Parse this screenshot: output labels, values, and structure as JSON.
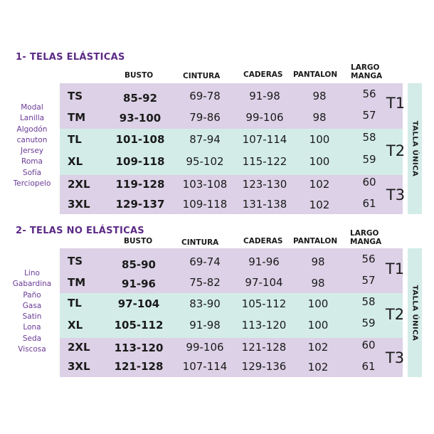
{
  "headers": {
    "busto": "BUSTO",
    "cintura": "CINTURA",
    "caderas": "CADERAS",
    "pantalon": "PANTALON",
    "largo_l1": "LARGO",
    "largo_l2": "MANGA"
  },
  "sidebar_label": "TALLA ÚNICA",
  "sections": [
    {
      "title": "1- TELAS  ELÁSTICAS",
      "fabrics": [
        "Modal",
        "Lanilla",
        "Algodón",
        "canuton",
        "Jersey",
        "Roma",
        "Sofía",
        "Terciopelo"
      ],
      "rows": [
        {
          "size": "TS",
          "busto": "85-92",
          "cintura": "69-78",
          "caderas": "91-98",
          "pantalon": "98",
          "largo": "56"
        },
        {
          "size": "TM",
          "busto": "93-100",
          "cintura": "79-86",
          "caderas": "99-106",
          "pantalon": "98",
          "largo": "57"
        },
        {
          "size": "TL",
          "busto": "101-108",
          "cintura": "87-94",
          "caderas": "107-114",
          "pantalon": "100",
          "largo": "58"
        },
        {
          "size": "XL",
          "busto": "109-118",
          "cintura": "95-102",
          "caderas": "115-122",
          "pantalon": "100",
          "largo": "59"
        },
        {
          "size": "2XL",
          "busto": "119-128",
          "cintura": "103-108",
          "caderas": "123-130",
          "pantalon": "102",
          "largo": "60"
        },
        {
          "size": "3XL",
          "busto": "129-137",
          "cintura": "109-118",
          "caderas": "131-138",
          "pantalon": "102",
          "largo": "61"
        }
      ],
      "groups": [
        "T1",
        "T2",
        "T3"
      ]
    },
    {
      "title": "2-  TELAS NO ELÁSTICAS",
      "fabrics": [
        "Lino",
        "Gabardina",
        "Paño",
        "Gasa",
        "Satin",
        "Lona",
        "Seda",
        "Viscosa"
      ],
      "rows": [
        {
          "size": "TS",
          "busto": "85-90",
          "cintura": "69-74",
          "caderas": "91-96",
          "pantalon": "98",
          "largo": "56"
        },
        {
          "size": "TM",
          "busto": "91-96",
          "cintura": "75-82",
          "caderas": "97-104",
          "pantalon": "98",
          "largo": "57"
        },
        {
          "size": "TL",
          "busto": "97-104",
          "cintura": "83-90",
          "caderas": "105-112",
          "pantalon": "100",
          "largo": "58"
        },
        {
          "size": "XL",
          "busto": "105-112",
          "cintura": "91-98",
          "caderas": "113-120",
          "pantalon": "100",
          "largo": "59"
        },
        {
          "size": "2XL",
          "busto": "113-120",
          "cintura": "99-106",
          "caderas": "121-128",
          "pantalon": "102",
          "largo": "60"
        },
        {
          "size": "3XL",
          "busto": "121-128",
          "cintura": "107-114",
          "caderas": "129-136",
          "pantalon": "102",
          "largo": "61"
        }
      ],
      "groups": [
        "T1",
        "T2",
        "T3"
      ]
    }
  ],
  "colors": {
    "purple_band": "#dcd1e6",
    "teal_band": "#d3ece8",
    "title_purple": "#5b2a86",
    "fabric_purple": "#6a3a96"
  }
}
